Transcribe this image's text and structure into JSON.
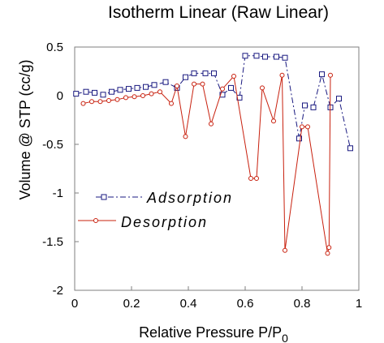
{
  "chart_data": {
    "type": "line",
    "title": "Isotherm Linear (Raw Linear)",
    "xlabel": "Relative Pressure  P/P",
    "xlabel_subscript": "0",
    "ylabel": "Volume @ STP (cc/g)",
    "xlim": [
      0,
      1
    ],
    "ylim": [
      -2,
      0.5
    ],
    "xticks": [
      0,
      0.2,
      0.4,
      0.6,
      0.8,
      1
    ],
    "xtick_labels": [
      "0",
      "0.2",
      "0.4",
      "0.6",
      "0.8",
      "1"
    ],
    "yticks": [
      -2,
      -1.5,
      -1,
      -0.5,
      0,
      0.5
    ],
    "ytick_labels": [
      "-2",
      "-1.5",
      "-1",
      "-0.5",
      "0",
      "0.5"
    ],
    "grid": false,
    "legend_position": "center-left",
    "series": [
      {
        "name": "Adsorption",
        "color": "#1a1a80",
        "marker": "square",
        "line_style": "dash-dot",
        "points": [
          [
            0.005,
            0.02
          ],
          [
            0.04,
            0.04
          ],
          [
            0.07,
            0.03
          ],
          [
            0.1,
            0.01
          ],
          [
            0.13,
            0.04
          ],
          [
            0.16,
            0.06
          ],
          [
            0.19,
            0.07
          ],
          [
            0.22,
            0.08
          ],
          [
            0.25,
            0.09
          ],
          [
            0.28,
            0.11
          ],
          [
            0.32,
            0.14
          ],
          [
            0.36,
            0.08
          ],
          [
            0.39,
            0.19
          ],
          [
            0.42,
            0.23
          ],
          [
            0.46,
            0.23
          ],
          [
            0.49,
            0.23
          ],
          [
            0.52,
            0.01
          ],
          [
            0.55,
            0.08
          ],
          [
            0.58,
            -0.02
          ],
          [
            0.6,
            0.41
          ],
          [
            0.64,
            0.41
          ],
          [
            0.67,
            0.4
          ],
          [
            0.71,
            0.4
          ],
          [
            0.74,
            0.39
          ],
          [
            0.79,
            -0.44
          ],
          [
            0.81,
            -0.1
          ],
          [
            0.84,
            -0.12
          ],
          [
            0.87,
            0.22
          ],
          [
            0.9,
            -0.12
          ],
          [
            0.93,
            -0.03
          ],
          [
            0.97,
            -0.54
          ]
        ]
      },
      {
        "name": "Desorption",
        "color": "#c8200e",
        "marker": "circle",
        "line_style": "solid",
        "points": [
          [
            0.03,
            -0.08
          ],
          [
            0.06,
            -0.06
          ],
          [
            0.09,
            -0.06
          ],
          [
            0.12,
            -0.05
          ],
          [
            0.15,
            -0.04
          ],
          [
            0.18,
            -0.02
          ],
          [
            0.21,
            -0.01
          ],
          [
            0.24,
            0.0
          ],
          [
            0.27,
            0.02
          ],
          [
            0.3,
            0.04
          ],
          [
            0.34,
            -0.08
          ],
          [
            0.36,
            0.1
          ],
          [
            0.39,
            -0.42
          ],
          [
            0.42,
            0.12
          ],
          [
            0.45,
            0.12
          ],
          [
            0.48,
            -0.29
          ],
          [
            0.52,
            0.07
          ],
          [
            0.56,
            0.2
          ],
          [
            0.62,
            -0.85
          ],
          [
            0.64,
            -0.85
          ],
          [
            0.66,
            0.08
          ],
          [
            0.7,
            -0.26
          ],
          [
            0.73,
            0.21
          ],
          [
            0.74,
            -1.59
          ],
          [
            0.8,
            -0.32
          ],
          [
            0.82,
            -0.32
          ],
          [
            0.89,
            -1.62
          ],
          [
            0.895,
            -1.56
          ],
          [
            0.9,
            0.21
          ]
        ]
      }
    ]
  }
}
